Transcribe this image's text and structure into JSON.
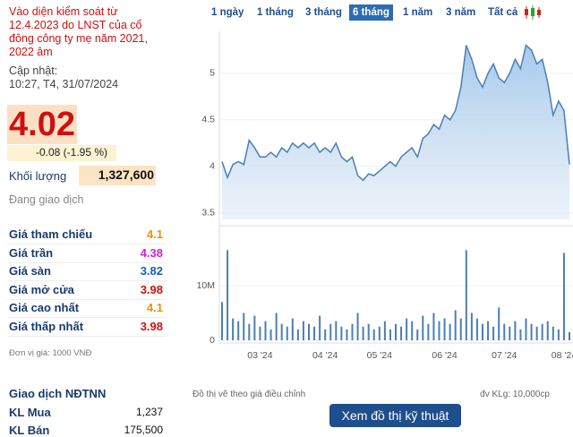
{
  "sidebar": {
    "notice": "Vào diện kiểm soát từ 12.4.2023 do LNST của cổ đông công ty mẹ năm 2021, 2022 âm",
    "updated_label": "Cập nhật:",
    "updated_time": "10:27, T4, 31/07/2024",
    "price": "4.02",
    "change": "-0.08 (-1.95 %)",
    "volume_label": "Khối lượng",
    "volume": "1,327,600",
    "status": "Đang giao dịch",
    "rows": [
      {
        "label": "Giá tham chiếu",
        "value": "4.1",
        "color": "#e8920c"
      },
      {
        "label": "Giá trần",
        "value": "4.38",
        "color": "#d81bd8"
      },
      {
        "label": "Giá sàn",
        "value": "3.82",
        "color": "#1a5fb4"
      },
      {
        "label": "Giá mở cửa",
        "value": "3.98",
        "color": "#d01010"
      },
      {
        "label": "Giá cao nhất",
        "value": "4.1",
        "color": "#e8920c"
      },
      {
        "label": "Giá thấp nhất",
        "value": "3.98",
        "color": "#d01010"
      }
    ],
    "unit_note": "Đơn vị giá: 1000 VNĐ",
    "foreign_title": "Giao dịch NĐTNN",
    "foreign_rows": [
      {
        "label": "KL Mua",
        "value": "1,237"
      },
      {
        "label": "KL Bán",
        "value": "175,500"
      }
    ]
  },
  "tabs": [
    "1 ngày",
    "1 tháng",
    "3 tháng",
    "6 tháng",
    "1 năm",
    "3 năm",
    "Tất cả"
  ],
  "active_tab": 3,
  "chart_data": [
    {
      "type": "area",
      "color": "#4a7fb5",
      "values": [
        4.05,
        3.88,
        4.02,
        4.05,
        4.02,
        4.28,
        4.2,
        4.1,
        4.1,
        4.15,
        4.1,
        4.2,
        4.15,
        4.25,
        4.2,
        4.25,
        4.2,
        4.25,
        4.15,
        4.2,
        4.15,
        4.25,
        4.1,
        4.05,
        4.1,
        3.9,
        3.85,
        3.92,
        3.9,
        3.95,
        4.0,
        4.05,
        4.0,
        4.1,
        4.15,
        4.2,
        4.1,
        4.3,
        4.35,
        4.45,
        4.4,
        4.55,
        4.5,
        4.6,
        4.85,
        5.3,
        5.15,
        4.95,
        4.85,
        5.0,
        5.1,
        4.95,
        4.9,
        5.0,
        5.15,
        5.05,
        5.3,
        5.25,
        5.1,
        5.15,
        4.9,
        4.55,
        4.7,
        4.6,
        4.02
      ],
      "ylim": [
        3.43,
        5.45
      ],
      "yticks": [
        3.5,
        4,
        4.5,
        5
      ]
    },
    {
      "type": "bar",
      "color": "#4a7fb5",
      "categories": [
        null,
        null,
        null,
        null,
        null,
        null,
        null,
        "03 '24",
        null,
        null,
        null,
        null,
        null,
        null,
        null,
        null,
        null,
        null,
        null,
        "04 '24",
        null,
        null,
        null,
        null,
        null,
        null,
        null,
        null,
        null,
        "05 '24",
        null,
        null,
        null,
        null,
        null,
        null,
        null,
        null,
        null,
        null,
        null,
        "06 '24",
        null,
        null,
        null,
        null,
        null,
        null,
        null,
        null,
        null,
        null,
        "07 '24",
        null,
        null,
        null,
        null,
        null,
        null,
        null,
        null,
        null,
        null,
        "08 '24",
        null
      ],
      "values": [
        7000000,
        16500000,
        4000000,
        3500000,
        5000000,
        3000000,
        4500000,
        2500000,
        3500000,
        2000000,
        5000000,
        3000000,
        2500000,
        4000000,
        2000000,
        3500000,
        3000000,
        2500000,
        4500000,
        2000000,
        3000000,
        3500000,
        2500000,
        2000000,
        3000000,
        5000000,
        2500000,
        3000000,
        2000000,
        2500000,
        3500000,
        2000000,
        3000000,
        2500000,
        4000000,
        3500000,
        2000000,
        4500000,
        3000000,
        5000000,
        3500000,
        4000000,
        3000000,
        5500000,
        4000000,
        16500000,
        5000000,
        4000000,
        3000000,
        3500000,
        2500000,
        6000000,
        3000000,
        2500000,
        3500000,
        2000000,
        4000000,
        3000000,
        2500000,
        3000000,
        3500000,
        2500000,
        2000000,
        16000000,
        1500000
      ],
      "ylim": [
        0,
        20000000
      ],
      "yticks": [
        0,
        {
          "value": 10000000,
          "label": "10M"
        }
      ]
    }
  ],
  "footer": {
    "note": "Đồ thị vẽ theo giá điều chỉnh",
    "unit": "đv KLg: 10,000cp",
    "button": "Xem đồ thị kỹ thuật"
  }
}
